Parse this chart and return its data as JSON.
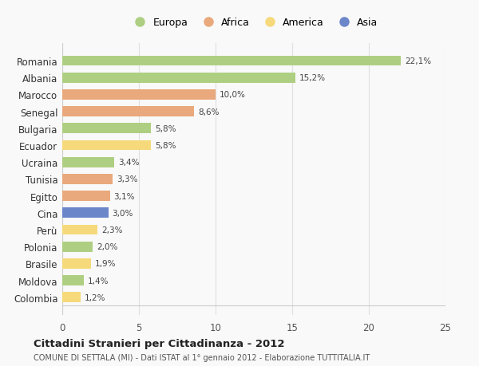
{
  "countries": [
    "Romania",
    "Albania",
    "Marocco",
    "Senegal",
    "Bulgaria",
    "Ecuador",
    "Ucraina",
    "Tunisia",
    "Egitto",
    "Cina",
    "Perù",
    "Polonia",
    "Brasile",
    "Moldova",
    "Colombia"
  ],
  "values": [
    22.1,
    15.2,
    10.0,
    8.6,
    5.8,
    5.8,
    3.4,
    3.3,
    3.1,
    3.0,
    2.3,
    2.0,
    1.9,
    1.4,
    1.2
  ],
  "labels": [
    "22,1%",
    "15,2%",
    "10,0%",
    "8,6%",
    "5,8%",
    "5,8%",
    "3,4%",
    "3,3%",
    "3,1%",
    "3,0%",
    "2,3%",
    "2,0%",
    "1,9%",
    "1,4%",
    "1,2%"
  ],
  "colors": [
    "#aecf82",
    "#aecf82",
    "#e9a97c",
    "#e9a97c",
    "#aecf82",
    "#f5d97a",
    "#aecf82",
    "#e9a97c",
    "#e9a97c",
    "#6b86c9",
    "#f5d97a",
    "#aecf82",
    "#f5d97a",
    "#aecf82",
    "#f5d97a"
  ],
  "legend_labels": [
    "Europa",
    "Africa",
    "America",
    "Asia"
  ],
  "legend_colors": [
    "#aecf82",
    "#e9a97c",
    "#f5d97a",
    "#6b86c9"
  ],
  "title": "Cittadini Stranieri per Cittadinanza - 2012",
  "subtitle": "COMUNE DI SETTALA (MI) - Dati ISTAT al 1° gennaio 2012 - Elaborazione TUTTITALIA.IT",
  "xlim": [
    0,
    25
  ],
  "xticks": [
    0,
    5,
    10,
    15,
    20,
    25
  ],
  "background_color": "#f9f9f9",
  "grid_color": "#e0e0e0"
}
